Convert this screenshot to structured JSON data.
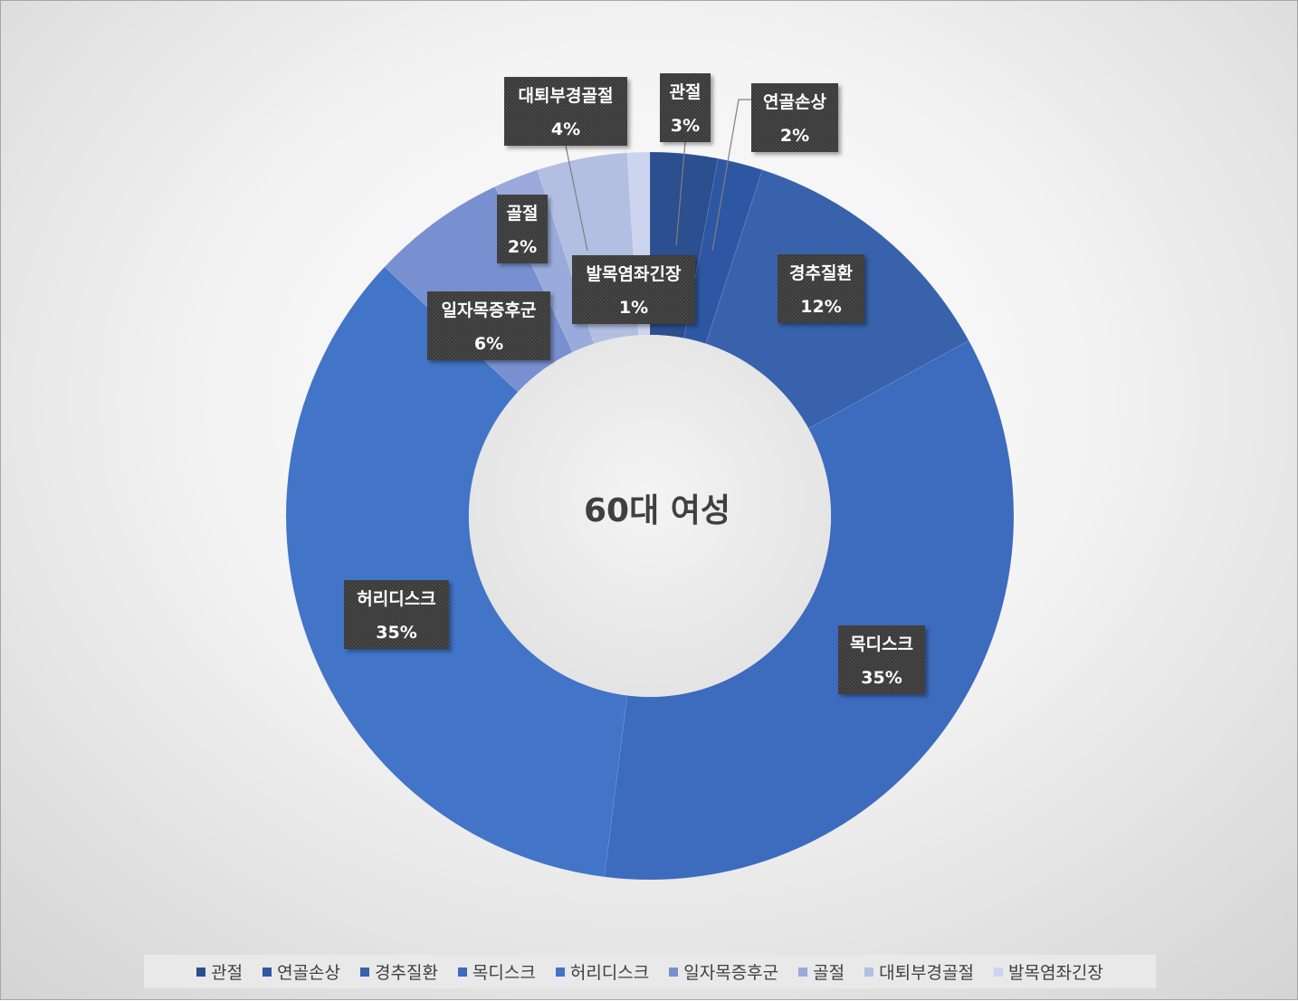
{
  "chart_data": {
    "type": "pie",
    "donut": true,
    "title": "60대 여성",
    "legend_position": "bottom",
    "categories": [
      "관절",
      "연골손상",
      "경추질환",
      "목디스크",
      "허리디스크",
      "일자목증후군",
      "골절",
      "대퇴부경골절",
      "발목염좌긴장"
    ],
    "values": [
      3,
      2,
      12,
      35,
      35,
      6,
      2,
      4,
      1
    ],
    "labels": [
      "3%",
      "2%",
      "12%",
      "35%",
      "35%",
      "6%",
      "2%",
      "4%",
      "1%"
    ],
    "colors": [
      "#2b4f8f",
      "#2e57a3",
      "#3862ab",
      "#3d6bbd",
      "#4274c8",
      "#7890d0",
      "#9aabdb",
      "#b2bfe3",
      "#ccd4ee"
    ]
  }
}
